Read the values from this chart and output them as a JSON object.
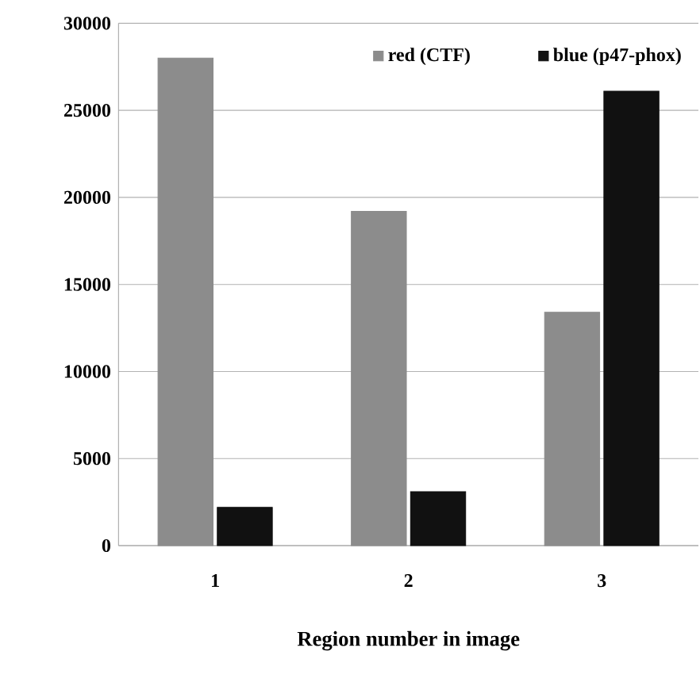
{
  "chart_data": {
    "type": "bar",
    "xlabel": "Region number in image",
    "categories": [
      "1",
      "2",
      "3"
    ],
    "series": [
      {
        "name": "red (CTF)",
        "color": "#8c8c8c",
        "values": [
          28000,
          19200,
          13400
        ]
      },
      {
        "name": "blue (p47-phox)",
        "color": "#111111",
        "values": [
          2200,
          3100,
          26100
        ]
      }
    ],
    "ylim": [
      0,
      30000
    ],
    "yticks": [
      0,
      5000,
      10000,
      15000,
      20000,
      25000,
      30000
    ],
    "grid": "y",
    "legend": "top right"
  }
}
